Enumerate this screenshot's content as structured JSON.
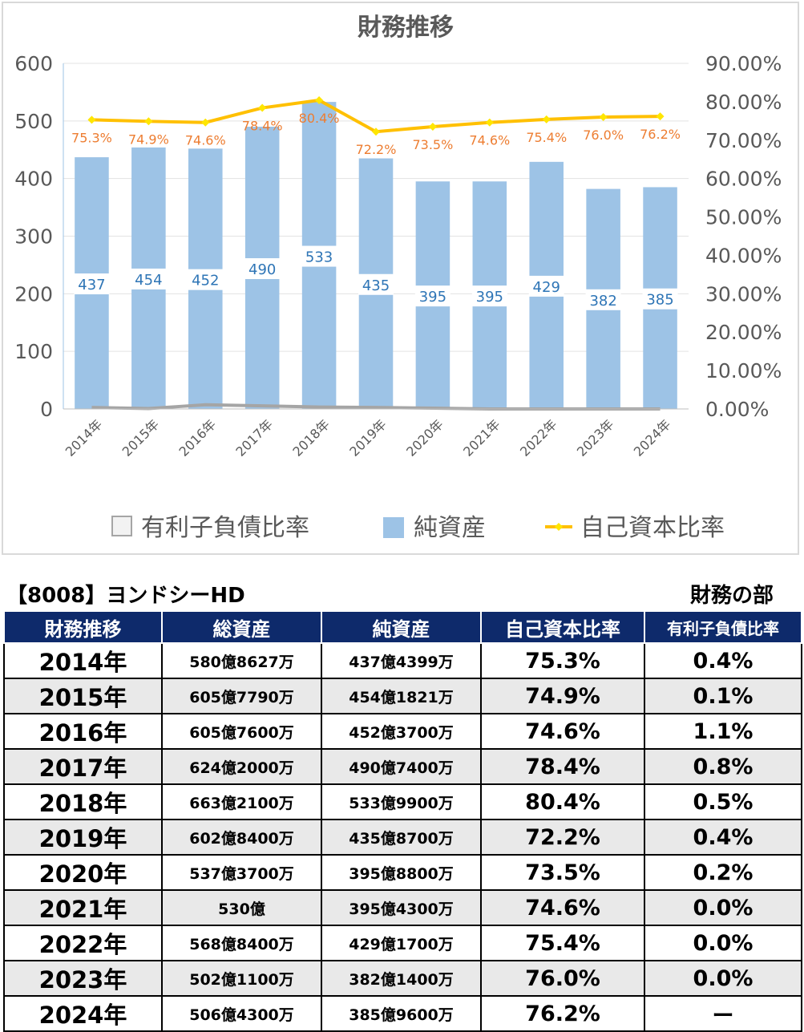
{
  "chart_data": {
    "type": "bar",
    "title": "財務推移",
    "categories": [
      "2014年",
      "2015年",
      "2016年",
      "2017年",
      "2018年",
      "2019年",
      "2020年",
      "2021年",
      "2022年",
      "2023年",
      "2024年"
    ],
    "series": [
      {
        "name": "有利子負債比率",
        "kind": "line",
        "axis": "right",
        "color": "#a5a5a5",
        "values": [
          0.4,
          0.1,
          1.1,
          0.8,
          0.5,
          0.4,
          0.2,
          0.0,
          0.0,
          0.0,
          0.0
        ]
      },
      {
        "name": "純資産",
        "kind": "bar",
        "axis": "left",
        "color": "#9dc3e6",
        "values": [
          437,
          454,
          452,
          490,
          533,
          435,
          395,
          395,
          429,
          382,
          385
        ],
        "labels": [
          "437",
          "454",
          "452",
          "490",
          "533",
          "435",
          "395",
          "395",
          "429",
          "382",
          "385"
        ]
      },
      {
        "name": "自己資本比率",
        "kind": "line",
        "axis": "right",
        "color": "#ffc000",
        "marker_color": "#ffe600",
        "values": [
          75.3,
          74.9,
          74.6,
          78.4,
          80.4,
          72.2,
          73.5,
          74.6,
          75.4,
          76.0,
          76.2
        ],
        "labels": [
          "75.3%",
          "74.9%",
          "74.6%",
          "78.4%",
          "80.4%",
          "72.2%",
          "73.5%",
          "74.6%",
          "75.4%",
          "76.0%",
          "76.2%"
        ]
      }
    ],
    "left_axis": {
      "range": [
        0,
        600
      ],
      "ticks": [
        "0",
        "100",
        "200",
        "300",
        "400",
        "500",
        "600"
      ]
    },
    "right_axis": {
      "range": [
        0,
        90
      ],
      "ticks": [
        "0.00%",
        "10.00%",
        "20.00%",
        "30.00%",
        "40.00%",
        "50.00%",
        "60.00%",
        "70.00%",
        "80.00%",
        "90.00%"
      ]
    },
    "grid": true,
    "legend": "bottom",
    "bar_label_color": "#2e75b6",
    "line_label_color": "#ed7d31"
  },
  "company_title": "【8008】ヨンドシーHD",
  "section_label": "財務の部",
  "table": {
    "headers": [
      "財務推移",
      "総資産",
      "純資産",
      "自己資本比率",
      "有利子負債比率"
    ],
    "rows": [
      [
        "2014年",
        "580億8627万",
        "437億4399万",
        "75.3%",
        "0.4%"
      ],
      [
        "2015年",
        "605億7790万",
        "454億1821万",
        "74.9%",
        "0.1%"
      ],
      [
        "2016年",
        "605億7600万",
        "452億3700万",
        "74.6%",
        "1.1%"
      ],
      [
        "2017年",
        "624億2000万",
        "490億7400万",
        "78.4%",
        "0.8%"
      ],
      [
        "2018年",
        "663億2100万",
        "533億9900万",
        "80.4%",
        "0.5%"
      ],
      [
        "2019年",
        "602億8400万",
        "435億8700万",
        "72.2%",
        "0.4%"
      ],
      [
        "2020年",
        "537億3700万",
        "395億8800万",
        "73.5%",
        "0.2%"
      ],
      [
        "2021年",
        "530億",
        "395億4300万",
        "74.6%",
        "0.0%"
      ],
      [
        "2022年",
        "568億8400万",
        "429億1700万",
        "75.4%",
        "0.0%"
      ],
      [
        "2023年",
        "502億1100万",
        "382億1400万",
        "76.0%",
        "0.0%"
      ],
      [
        "2024年",
        "506億4300万",
        "385億9600万",
        "76.2%",
        "ー"
      ]
    ]
  }
}
